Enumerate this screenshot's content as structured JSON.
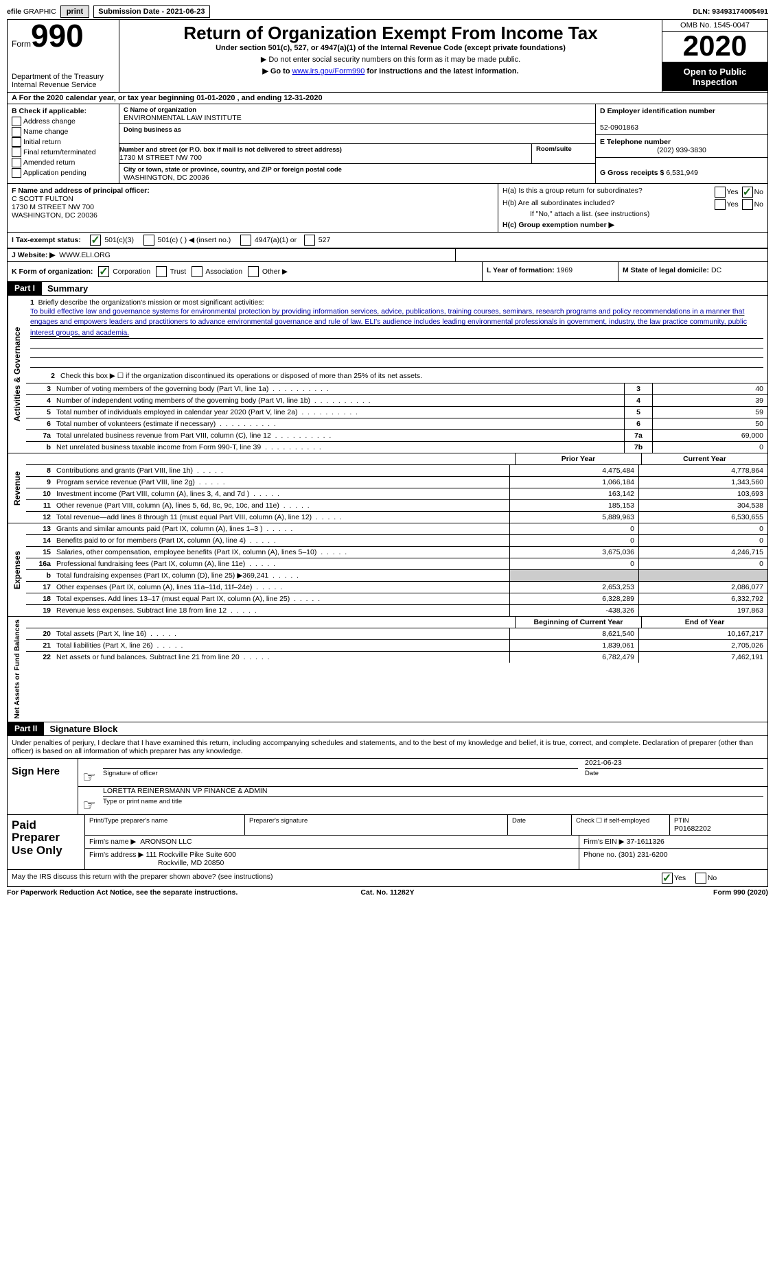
{
  "topbar": {
    "efile": "efile",
    "graphic": "GRAPHIC",
    "print": "print",
    "sub_label": "Submission Date - 2021-06-23",
    "dln_label": "DLN: 93493174005491"
  },
  "header": {
    "form_word": "Form",
    "form_num": "990",
    "dept": "Department of the Treasury\nInternal Revenue Service",
    "title": "Return of Organization Exempt From Income Tax",
    "sub1": "Under section 501(c), 527, or 4947(a)(1) of the Internal Revenue Code (except private foundations)",
    "sub2": "▶ Do not enter social security numbers on this form as it may be made public.",
    "sub3_a": "▶ Go to ",
    "sub3_link": "www.irs.gov/Form990",
    "sub3_b": " for instructions and the latest information.",
    "omb": "OMB No. 1545-0047",
    "year": "2020",
    "open": "Open to Public Inspection"
  },
  "period": "A   For the 2020 calendar year, or tax year beginning 01-01-2020    , and ending 12-31-2020",
  "boxB": {
    "header": "B Check if applicable:",
    "items": [
      "Address change",
      "Name change",
      "Initial return",
      "Final return/terminated",
      "Amended return",
      "Application pending"
    ]
  },
  "boxC": {
    "name_lbl": "C Name of organization",
    "name": "ENVIRONMENTAL LAW INSTITUTE",
    "dba_lbl": "Doing business as",
    "addr_lbl": "Number and street (or P.O. box if mail is not delivered to street address)",
    "addr": "1730 M STREET NW 700",
    "room_lbl": "Room/suite",
    "city_lbl": "City or town, state or province, country, and ZIP or foreign postal code",
    "city": "WASHINGTON, DC  20036"
  },
  "boxD": {
    "ein_lbl": "D Employer identification number",
    "ein": "52-0901863",
    "tel_lbl": "E Telephone number",
    "tel": "(202) 939-3830",
    "gross_lbl": "G Gross receipts $",
    "gross": "6,531,949"
  },
  "boxF": {
    "lbl": "F  Name and address of principal officer:",
    "name": "C SCOTT FULTON",
    "addr1": "1730 M STREET NW 700",
    "addr2": "WASHINGTON, DC  20036"
  },
  "boxH": {
    "a": "H(a)  Is this a group return for subordinates?",
    "b": "H(b)  Are all subordinates included?",
    "b2": "If \"No,\" attach a list. (see instructions)",
    "c": "H(c)  Group exemption number ▶",
    "yes": "Yes",
    "no": "No"
  },
  "rowI": {
    "lbl": "I    Tax-exempt status:",
    "o1": "501(c)(3)",
    "o2": "501(c) (   ) ◀ (insert no.)",
    "o3": "4947(a)(1) or",
    "o4": "527"
  },
  "rowJ": {
    "lbl": "J   Website: ▶",
    "val": "WWW.ELI.ORG"
  },
  "rowK": {
    "lbl": "K Form of organization:",
    "o1": "Corporation",
    "o2": "Trust",
    "o3": "Association",
    "o4": "Other ▶",
    "L_lbl": "L Year of formation:",
    "L_val": "1969",
    "M_lbl": "M State of legal domicile:",
    "M_val": "DC"
  },
  "partI": {
    "tab": "Part I",
    "title": "Summary",
    "side_gov": "Activities & Governance",
    "side_rev": "Revenue",
    "side_exp": "Expenses",
    "side_net": "Net Assets or Fund Balances",
    "line1_intro": "1  Briefly describe the organization's mission or most significant activities:",
    "line1_text": "To build effective law and governance systems for environmental protection by providing information services, advice, publications, training courses, seminars, research programs and policy recommendations in a manner that engages and empowers leaders and practitioners to advance environmental governance and rule of law. ELI's audience includes leading environmental professionals in government, industry, the law practice community, public interest groups, and academia.",
    "line2": "Check this box ▶ ☐  if the organization discontinued its operations or disposed of more than 25% of its net assets.",
    "rows_gov": [
      {
        "n": "3",
        "d": "Number of voting members of the governing body (Part VI, line 1a)",
        "bn": "3",
        "v": "40"
      },
      {
        "n": "4",
        "d": "Number of independent voting members of the governing body (Part VI, line 1b)",
        "bn": "4",
        "v": "39"
      },
      {
        "n": "5",
        "d": "Total number of individuals employed in calendar year 2020 (Part V, line 2a)",
        "bn": "5",
        "v": "59"
      },
      {
        "n": "6",
        "d": "Total number of volunteers (estimate if necessary)",
        "bn": "6",
        "v": "50"
      },
      {
        "n": "7a",
        "d": "Total unrelated business revenue from Part VIII, column (C), line 12",
        "bn": "7a",
        "v": "69,000"
      },
      {
        "n": "b",
        "d": "Net unrelated business taxable income from Form 990-T, line 39",
        "bn": "7b",
        "v": "0"
      }
    ],
    "col_prior": "Prior Year",
    "col_curr": "Current Year",
    "rows_rev": [
      {
        "n": "8",
        "d": "Contributions and grants (Part VIII, line 1h)",
        "p": "4,475,484",
        "c": "4,778,864"
      },
      {
        "n": "9",
        "d": "Program service revenue (Part VIII, line 2g)",
        "p": "1,066,184",
        "c": "1,343,560"
      },
      {
        "n": "10",
        "d": "Investment income (Part VIII, column (A), lines 3, 4, and 7d )",
        "p": "163,142",
        "c": "103,693"
      },
      {
        "n": "11",
        "d": "Other revenue (Part VIII, column (A), lines 5, 6d, 8c, 9c, 10c, and 11e)",
        "p": "185,153",
        "c": "304,538"
      },
      {
        "n": "12",
        "d": "Total revenue—add lines 8 through 11 (must equal Part VIII, column (A), line 12)",
        "p": "5,889,963",
        "c": "6,530,655"
      }
    ],
    "rows_exp": [
      {
        "n": "13",
        "d": "Grants and similar amounts paid (Part IX, column (A), lines 1–3 )",
        "p": "0",
        "c": "0"
      },
      {
        "n": "14",
        "d": "Benefits paid to or for members (Part IX, column (A), line 4)",
        "p": "0",
        "c": "0"
      },
      {
        "n": "15",
        "d": "Salaries, other compensation, employee benefits (Part IX, column (A), lines 5–10)",
        "p": "3,675,036",
        "c": "4,246,715"
      },
      {
        "n": "16a",
        "d": "Professional fundraising fees (Part IX, column (A), line 11e)",
        "p": "0",
        "c": "0"
      },
      {
        "n": "b",
        "d": "Total fundraising expenses (Part IX, column (D), line 25) ▶369,241",
        "p": "",
        "c": ""
      },
      {
        "n": "17",
        "d": "Other expenses (Part IX, column (A), lines 11a–11d, 11f–24e)",
        "p": "2,653,253",
        "c": "2,086,077"
      },
      {
        "n": "18",
        "d": "Total expenses. Add lines 13–17 (must equal Part IX, column (A), line 25)",
        "p": "6,328,289",
        "c": "6,332,792"
      },
      {
        "n": "19",
        "d": "Revenue less expenses. Subtract line 18 from line 12",
        "p": "-438,326",
        "c": "197,863"
      }
    ],
    "col_beg": "Beginning of Current Year",
    "col_end": "End of Year",
    "rows_net": [
      {
        "n": "20",
        "d": "Total assets (Part X, line 16)",
        "p": "8,621,540",
        "c": "10,167,217"
      },
      {
        "n": "21",
        "d": "Total liabilities (Part X, line 26)",
        "p": "1,839,061",
        "c": "2,705,026"
      },
      {
        "n": "22",
        "d": "Net assets or fund balances. Subtract line 21 from line 20",
        "p": "6,782,479",
        "c": "7,462,191"
      }
    ]
  },
  "partII": {
    "tab": "Part II",
    "title": "Signature Block",
    "decl": "Under penalties of perjury, I declare that I have examined this return, including accompanying schedules and statements, and to the best of my knowledge and belief, it is true, correct, and complete. Declaration of preparer (other than officer) is based on all information of which preparer has any knowledge.",
    "sign_here": "Sign Here",
    "sig_lbl": "Signature of officer",
    "date_lbl": "Date",
    "date_val": "2021-06-23",
    "name_val": "LORETTA REINERSMANN  VP FINANCE & ADMIN",
    "name_lbl": "Type or print name and title",
    "paid": "Paid Preparer Use Only",
    "p_name_lbl": "Print/Type preparer's name",
    "p_sig_lbl": "Preparer's signature",
    "p_date_lbl": "Date",
    "p_self_lbl": "Check ☐ if self-employed",
    "ptin_lbl": "PTIN",
    "ptin": "P01682202",
    "firm_name_lbl": "Firm's name    ▶",
    "firm_name": "ARONSON LLC",
    "firm_ein_lbl": "Firm's EIN ▶",
    "firm_ein": "37-1611326",
    "firm_addr_lbl": "Firm's address ▶",
    "firm_addr1": "111 Rockville Pike Suite 600",
    "firm_addr2": "Rockville, MD  20850",
    "firm_phone_lbl": "Phone no.",
    "firm_phone": "(301) 231-6200",
    "discuss": "May the IRS discuss this return with the preparer shown above? (see instructions)",
    "yes": "Yes",
    "no": "No"
  },
  "footer": {
    "l": "For Paperwork Reduction Act Notice, see the separate instructions.",
    "c": "Cat. No. 11282Y",
    "r": "Form 990 (2020)"
  }
}
